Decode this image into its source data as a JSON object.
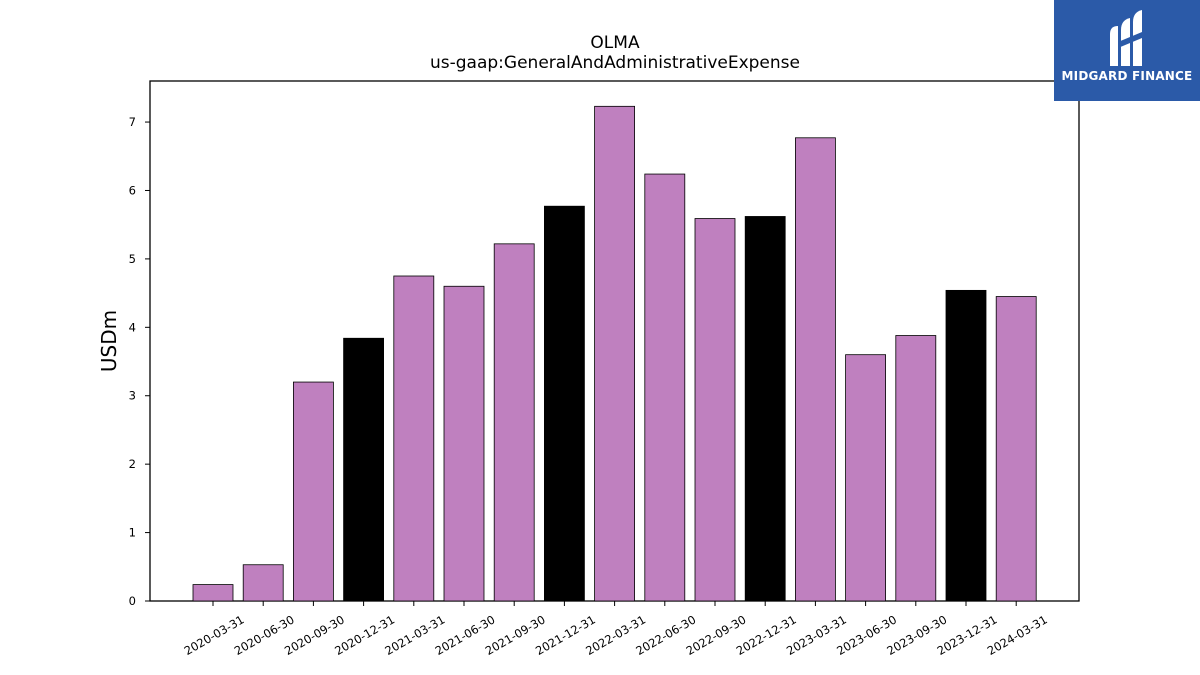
{
  "chart_data": {
    "type": "bar",
    "title": "OLMA",
    "subtitle": "us-gaap:GeneralAndAdministrativeExpense",
    "xlabel": "",
    "ylabel": "USDm",
    "ylim": [
      0,
      7.6
    ],
    "yticks": [
      0,
      1,
      2,
      3,
      4,
      5,
      6,
      7
    ],
    "grid": false,
    "categories": [
      "2020-03-31",
      "2020-06-30",
      "2020-09-30",
      "2020-12-31",
      "2021-03-31",
      "2021-06-30",
      "2021-09-30",
      "2021-12-31",
      "2022-03-31",
      "2022-06-30",
      "2022-09-30",
      "2022-12-31",
      "2023-03-31",
      "2023-06-30",
      "2023-09-30",
      "2023-12-31",
      "2024-03-31"
    ],
    "values": [
      0.24,
      0.53,
      3.2,
      3.84,
      4.75,
      4.6,
      5.22,
      5.77,
      7.23,
      6.24,
      5.59,
      5.62,
      6.77,
      3.6,
      3.88,
      4.54,
      4.45
    ],
    "bar_colors": [
      "#bf80bf",
      "#bf80bf",
      "#bf80bf",
      "#000000",
      "#bf80bf",
      "#bf80bf",
      "#bf80bf",
      "#000000",
      "#bf80bf",
      "#bf80bf",
      "#bf80bf",
      "#000000",
      "#bf80bf",
      "#bf80bf",
      "#bf80bf",
      "#000000",
      "#bf80bf"
    ]
  },
  "logo": {
    "text": "MIDGARD FINANCE",
    "background": "#2b5aa8"
  }
}
